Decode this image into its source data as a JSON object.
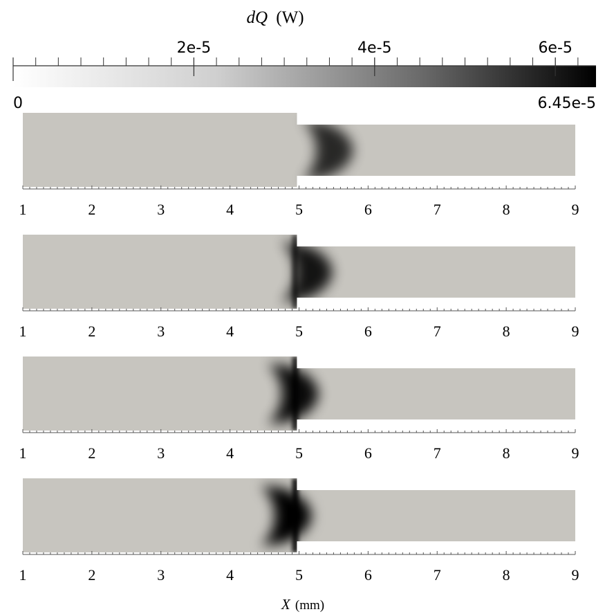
{
  "colorbar": {
    "title_var": "dQ",
    "title_unit": "(W)",
    "min_label": "0",
    "max_label": "6.45e-5",
    "min": 0,
    "max": 6.45e-05,
    "major_ticks": [
      {
        "value": 2e-05,
        "label": "2e-5"
      },
      {
        "value": 4e-05,
        "label": "4e-5"
      },
      {
        "value": 6e-05,
        "label": "6e-5"
      }
    ],
    "minor_tick_step": 2.5e-06,
    "colors": {
      "low": "#ffffff",
      "high": "#000000"
    }
  },
  "panels": [
    {
      "front_x": 5.6,
      "intensity": 0.8,
      "wall_darkening": 0.0
    },
    {
      "front_x": 5.3,
      "intensity": 0.9,
      "wall_darkening": 0.7
    },
    {
      "front_x": 5.1,
      "intensity": 0.95,
      "wall_darkening": 0.9
    },
    {
      "front_x": 5.0,
      "intensity": 1.0,
      "wall_darkening": 1.0
    }
  ],
  "x_axis": {
    "range": [
      1,
      9
    ],
    "tick_labels": [
      "1",
      "2",
      "3",
      "4",
      "5",
      "6",
      "7",
      "8",
      "9"
    ],
    "label_var": "X",
    "label_unit": "(mm)"
  },
  "colors": {
    "domain_fill": "#c7c5bf",
    "axis": "#555555"
  }
}
